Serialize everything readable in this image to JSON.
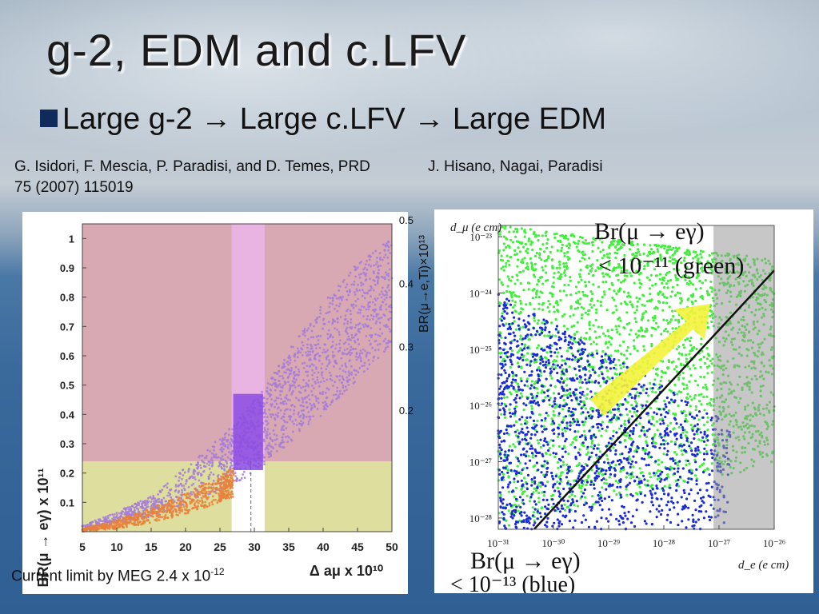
{
  "slide": {
    "title": "g-2, EDM and c.LFV",
    "bullet": "Large g-2 → Large c.LFV → Large EDM",
    "citation_left": "G. Isidori, F. Mescia, P. Paradisi, and D. Temes, PRD 75 (2007) 115019",
    "citation_right": "J. Hisano, Nagai, Paradisi",
    "meg_note_prefix": "Current limit by MEG 2.4 x 10",
    "meg_note_exp": "-12"
  },
  "colors": {
    "pink_region": "#d8a9b3",
    "yellow_region": "#dede9e",
    "violet": "#a57cd8",
    "orange": "#e8803a",
    "blue": "#1a2ad8",
    "green": "#3ff03a",
    "arrow": "#f4f23a"
  },
  "chart_data": [
    {
      "type": "scatter",
      "xlabel": "Δ aμ x 10¹⁰",
      "ylabel": "BR(μ → eγ) x 10¹¹",
      "xlim": [
        5,
        50
      ],
      "ylim": [
        0,
        1.05
      ],
      "x_ticks": [
        "5",
        "10",
        "15",
        "20",
        "25",
        "30",
        "35",
        "40",
        "45",
        "50"
      ],
      "y_ticks": [
        "0.1",
        "0.2",
        "0.3",
        "0.4",
        "0.5",
        "0.6",
        "0.7",
        "0.8",
        "0.9",
        "1"
      ],
      "right_axis": {
        "label": "BR(μ→e,Ti)×10¹³",
        "ticks": [
          "0.2",
          "0.3",
          "0.4",
          "0.5"
        ]
      },
      "excluded_band_y": 0.24,
      "g2_band_x": [
        29.5,
        31.5
      ],
      "series": [
        {
          "color": "violet",
          "band": [
            [
              5,
              0.005,
              0.02
            ],
            [
              15,
              0.05,
              0.12
            ],
            [
              25,
              0.14,
              0.32
            ],
            [
              30,
              0.2,
              0.45
            ],
            [
              35,
              0.3,
              0.62
            ],
            [
              40,
              0.4,
              0.78
            ],
            [
              45,
              0.52,
              0.92
            ],
            [
              50,
              0.64,
              1.0
            ]
          ]
        },
        {
          "color": "orange",
          "band": [
            [
              5,
              0.0,
              0.01
            ],
            [
              10,
              0.01,
              0.04
            ],
            [
              15,
              0.03,
              0.08
            ],
            [
              20,
              0.06,
              0.13
            ],
            [
              25,
              0.1,
              0.19
            ],
            [
              27,
              0.12,
              0.22
            ]
          ]
        }
      ]
    },
    {
      "type": "scatter",
      "xlabel": "d_e (e cm)",
      "ylabel": "d_μ (e cm)",
      "x_scale": "log",
      "y_scale": "log",
      "x_ticks": [
        "10⁻³¹",
        "10⁻³⁰",
        "10⁻²⁹",
        "10⁻²⁸",
        "10⁻²⁷",
        "10⁻²⁶"
      ],
      "y_ticks": [
        "10⁻²⁸",
        "10⁻²⁷",
        "10⁻²⁶",
        "10⁻²⁵",
        "10⁻²⁴",
        "10⁻²³"
      ],
      "xlim_exp": [
        -31,
        -26
      ],
      "ylim_exp": [
        -28.2,
        -22.8
      ],
      "excluded_x_exp_min": -27.1,
      "series": [
        {
          "name": "Br(μ → eγ) < 10⁻¹¹ (green)",
          "color": "green",
          "label_lines": [
            "Br(μ → eγ)",
            "< 10⁻¹¹ (green)"
          ]
        },
        {
          "name": "Br(μ → eγ) < 10⁻¹³ (blue)",
          "color": "blue",
          "label_lines": [
            "Br(μ → eγ)",
            "< 10⁻¹³ (blue)"
          ]
        }
      ]
    }
  ]
}
